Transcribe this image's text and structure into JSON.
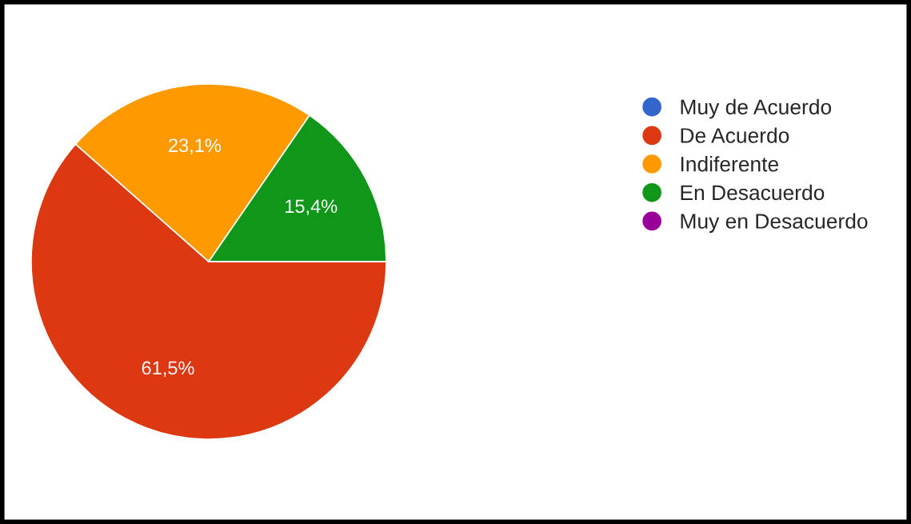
{
  "chart_data": {
    "type": "pie",
    "categories": [
      "Muy de Acuerdo",
      "De Acuerdo",
      "Indiferente",
      "En Desacuerdo",
      "Muy en Desacuerdo"
    ],
    "values": [
      0,
      61.5,
      23.1,
      15.4,
      0
    ],
    "colors": [
      "#3366cc",
      "#dc3912",
      "#ff9900",
      "#109618",
      "#990099"
    ],
    "value_labels": [
      null,
      "61,5%",
      "23,1%",
      "15,4%",
      null
    ],
    "legend": "right"
  }
}
